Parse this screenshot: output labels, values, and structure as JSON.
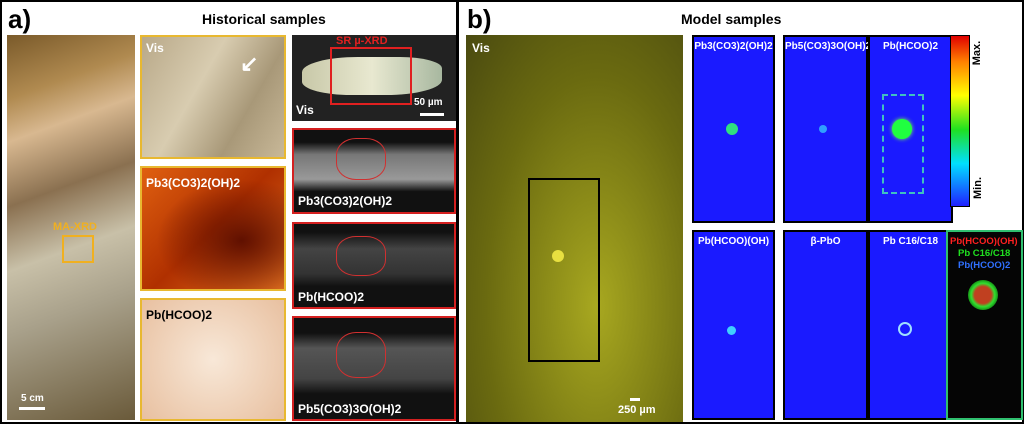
{
  "panel_a": {
    "letter": "a)",
    "title": "Historical samples",
    "painting": {
      "roi_label": "MA-XRD",
      "scale": "5 cm"
    },
    "vis_detail": {
      "label": "Vis"
    },
    "map1": {
      "label": "Pb3(CO3)2(OH)2"
    },
    "map2": {
      "label": "Pb(HCOO)2"
    },
    "micro": {
      "label": "Vis",
      "roi_label": "SR µ-XRD",
      "scale": "50 µm"
    },
    "xrd_maps": [
      {
        "label": "Pb3(CO3)2(OH)2"
      },
      {
        "label": "Pb(HCOO)2"
      },
      {
        "label": "Pb5(CO3)3O(OH)2"
      }
    ]
  },
  "panel_b": {
    "letter": "b)",
    "title": "Model samples",
    "vis": {
      "label": "Vis",
      "scale": "250 µm"
    },
    "maps": [
      {
        "label": "Pb3(CO3)2(OH)2"
      },
      {
        "label": "Pb5(CO3)3O(OH)2"
      },
      {
        "label": "Pb(HCOO)2"
      },
      {
        "label": "Pb(HCOO)(OH)"
      },
      {
        "label": "β-PbO"
      },
      {
        "label": "Pb C16/C18"
      }
    ],
    "colorbar": {
      "max": "Max.",
      "min": "Min."
    },
    "composite": {
      "labels": [
        {
          "text": "Pb(HCOO)(OH)",
          "color": "#ff2020"
        },
        {
          "text": "Pb C16/C18",
          "color": "#20e020"
        },
        {
          "text": "Pb(HCOO)2",
          "color": "#3070ff"
        }
      ]
    }
  }
}
